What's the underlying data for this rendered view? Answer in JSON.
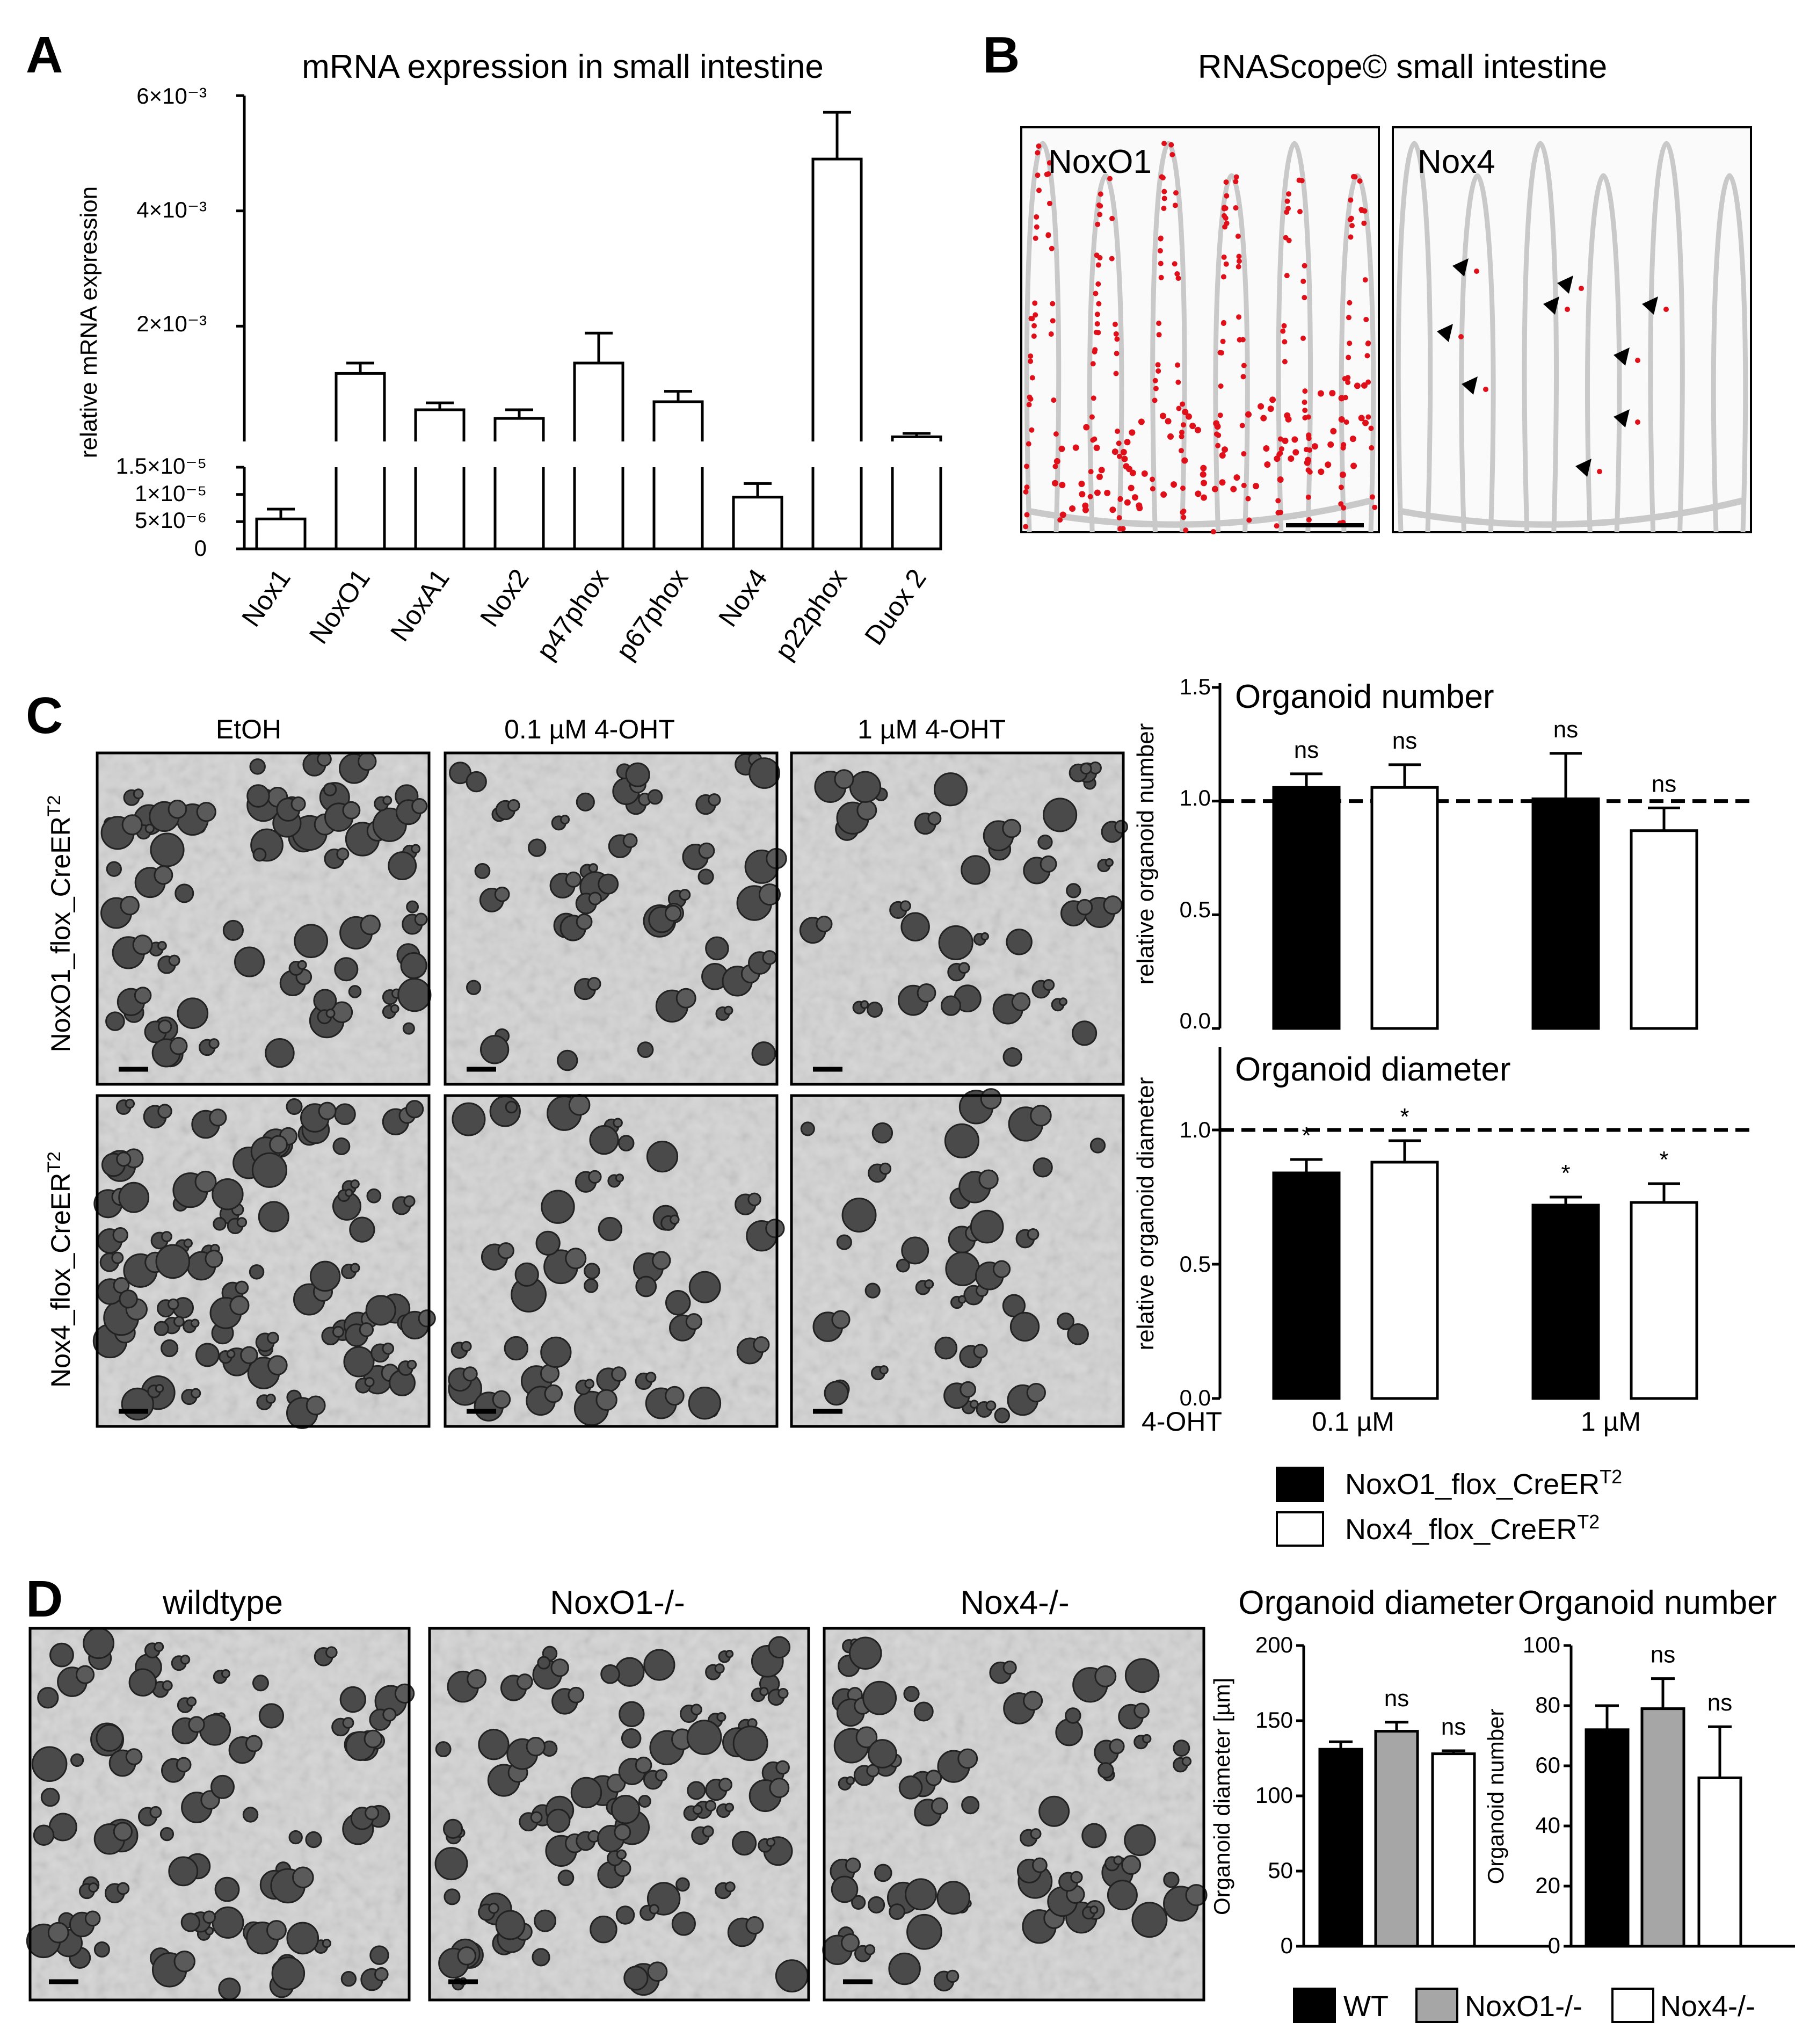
{
  "panels": {
    "A": {
      "letter": "A",
      "title": "mRNA expression in small intestine",
      "ylabel": "relative mRNA expression",
      "upper_ticks": [
        "2×10⁻³",
        "4×10⁻³",
        "6×10⁻³"
      ],
      "lower_ticks": [
        "0",
        "5×10⁻⁶",
        "1×10⁻⁵",
        "1.5×10⁻⁵"
      ]
    },
    "B": {
      "letter": "B",
      "title": "RNAScope© small intestine",
      "image_labels": [
        "NoxO1",
        "Nox4"
      ]
    },
    "C": {
      "letter": "C",
      "col_labels": [
        "EtOH",
        "0.1 µM 4-OHT",
        "1 µM 4-OHT"
      ],
      "row_label_1": "NoxO1_flox_CreER",
      "row_label_2": "Nox4_flox_CreER",
      "row_sup": "T2",
      "top_title": "Organoid number",
      "top_ylabel": "relative organoid number",
      "bottom_title": "Organoid diameter",
      "bottom_ylabel": "relative organoid diameter",
      "ticks": [
        "0.0",
        "0.5",
        "1.0",
        "1.5"
      ],
      "row_label_4oht": "4-OHT",
      "group_labels": [
        "0.1 µM",
        "1 µM"
      ],
      "legend": [
        "NoxO1_flox_CreER",
        "Nox4_flox_CreER"
      ],
      "legend_sup": "T2"
    },
    "D": {
      "letter": "D",
      "col_labels": [
        "wildtype",
        "NoxO1-/-",
        "Nox4-/-"
      ],
      "left_title": "Organoid diameter",
      "left_ylabel": "Organoid diameter [µm]",
      "left_ticks": [
        "0",
        "50",
        "100",
        "150",
        "200"
      ],
      "right_title": "Organoid number",
      "right_ylabel": "Organoid number",
      "right_ticks": [
        "0",
        "20",
        "40",
        "60",
        "80",
        "100"
      ],
      "legend": [
        "WT",
        "NoxO1-/-",
        "Nox4-/-"
      ]
    }
  },
  "colors": {
    "black_bar": "#000000",
    "white_bar": "#ffffff",
    "grey_bar": "#a6a6a6",
    "rnascope_dot": "#e0101a",
    "micrograph_bg": "#d4d4d4"
  },
  "chart_data": [
    {
      "id": "A",
      "type": "bar",
      "categories": [
        "Nox1",
        "NoxO1",
        "NoxA1",
        "Nox2",
        "p47phox",
        "p67phox",
        "Nox4",
        "p22phox",
        "Duox 2"
      ],
      "values": [
        5.5e-06,
        0.00118,
        0.00055,
        0.0004,
        0.00136,
        0.00069,
        9.5e-06,
        0.0049,
        8e-05
      ],
      "errors": [
        1.8e-06,
        0.00018,
        0.00012,
        0.00015,
        0.00052,
        0.00018,
        2.5e-06,
        0.00081,
        6e-05
      ],
      "axis_break": {
        "lower_range": [
          0,
          1.5e-05
        ],
        "upper_range": [
          0,
          0.006
        ]
      },
      "title": "mRNA expression in small intestine",
      "ylabel": "relative mRNA expression"
    },
    {
      "id": "C-top",
      "type": "bar",
      "categories": [
        "0.1 µM",
        "1 µM"
      ],
      "series": [
        {
          "name": "NoxO1_flox_CreERT2",
          "values": [
            1.06,
            1.01
          ],
          "errors": [
            0.06,
            0.2
          ],
          "sig": [
            "ns",
            "ns"
          ]
        },
        {
          "name": "Nox4_flox_CreERT2",
          "values": [
            1.06,
            0.87
          ],
          "errors": [
            0.1,
            0.1
          ],
          "sig": [
            "ns",
            "ns"
          ]
        }
      ],
      "reference_line": 1.0,
      "ylim": [
        0,
        1.5
      ],
      "title": "Organoid number",
      "ylabel": "relative organoid number"
    },
    {
      "id": "C-bottom",
      "type": "bar",
      "categories": [
        "0.1 µM",
        "1 µM"
      ],
      "series": [
        {
          "name": "NoxO1_flox_CreERT2",
          "values": [
            0.84,
            0.72
          ],
          "errors": [
            0.05,
            0.03
          ],
          "sig": [
            "*",
            "*"
          ]
        },
        {
          "name": "Nox4_flox_CreERT2",
          "values": [
            0.88,
            0.73
          ],
          "errors": [
            0.08,
            0.07
          ],
          "sig": [
            "*",
            "*"
          ]
        }
      ],
      "reference_line": 1.0,
      "ylim": [
        0,
        1.25
      ],
      "title": "Organoid diameter",
      "ylabel": "relative organoid diameter",
      "xlabel": "4-OHT"
    },
    {
      "id": "D-left",
      "type": "bar",
      "categories": [
        "WT",
        "NoxO1-/-",
        "Nox4-/-"
      ],
      "values": [
        131,
        143,
        128
      ],
      "errors": [
        5,
        6,
        2
      ],
      "sig": [
        "",
        "ns",
        "ns"
      ],
      "ylim": [
        0,
        200
      ],
      "title": "Organoid diameter",
      "ylabel": "Organoid diameter [µm]"
    },
    {
      "id": "D-right",
      "type": "bar",
      "categories": [
        "WT",
        "NoxO1-/-",
        "Nox4-/-"
      ],
      "values": [
        72,
        79,
        56
      ],
      "errors": [
        8,
        10,
        17
      ],
      "sig": [
        "",
        "ns",
        "ns"
      ],
      "ylim": [
        0,
        100
      ],
      "title": "Organoid number",
      "ylabel": "Organoid number"
    }
  ]
}
